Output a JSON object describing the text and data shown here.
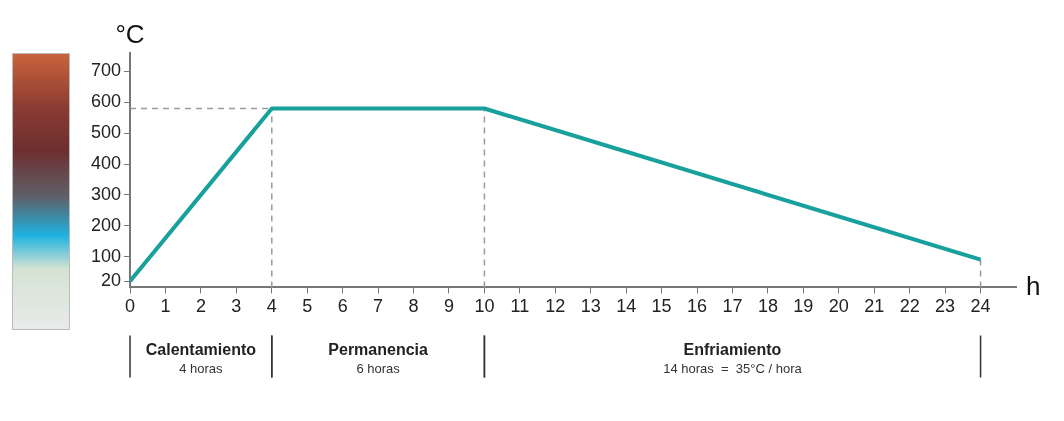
{
  "chart_data": {
    "type": "line",
    "ylabel": "°C",
    "xlabel": "h",
    "x": [
      0,
      4,
      10,
      24
    ],
    "series": [
      {
        "color": "#17a09c",
        "values": [
          20,
          580,
          580,
          90
        ]
      }
    ],
    "xlim": [
      0,
      25
    ],
    "xticks": [
      0,
      1,
      2,
      3,
      4,
      5,
      6,
      7,
      8,
      9,
      10,
      11,
      12,
      13,
      14,
      15,
      16,
      17,
      18,
      19,
      20,
      21,
      22,
      23,
      24
    ],
    "ylim": [
      0,
      760
    ],
    "yticks": [
      20,
      100,
      200,
      300,
      400,
      500,
      600,
      700
    ],
    "grid": false,
    "legend": false,
    "marker": "none",
    "line_style": "solid",
    "ref_lines": [
      {
        "axis": "y",
        "value": 580,
        "line_style": "dashed",
        "color": "#9a9a9a"
      },
      {
        "axis": "x",
        "value": 4,
        "line_style": "dashed",
        "color": "#9a9a9a"
      },
      {
        "axis": "x",
        "value": 10,
        "line_style": "dashed",
        "color": "#9a9a9a"
      },
      {
        "axis": "x",
        "value": 24,
        "line_style": "dashed",
        "color": "#9a9a9a"
      }
    ],
    "annotations": [
      "Calentamiento",
      "4 horas",
      "Permanencia",
      "6 horas",
      "Enfriamiento",
      "14 horas  =  35°C / hora"
    ]
  }
}
